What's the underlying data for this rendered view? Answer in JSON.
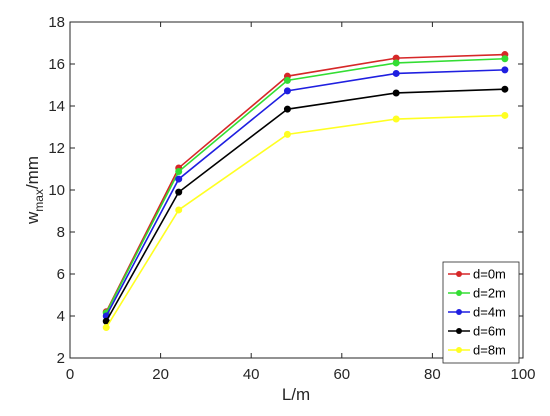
{
  "chart_data": {
    "type": "line",
    "xlabel": "L/m",
    "ylabel": {
      "base": "w",
      "subscript": "max",
      "suffix": "/mm"
    },
    "xlim": [
      0,
      100
    ],
    "ylim": [
      2,
      18
    ],
    "xticks": [
      "0",
      "20",
      "40",
      "60",
      "80",
      "100"
    ],
    "yticks": [
      "2",
      "4",
      "6",
      "8",
      "10",
      "12",
      "14",
      "16",
      "18"
    ],
    "grid": false,
    "legend_position": "bottom-right",
    "x": [
      8,
      24,
      48,
      72,
      96
    ],
    "series": [
      {
        "name": "d=0m",
        "color": "#d62728",
        "values": [
          4.2,
          11.05,
          15.42,
          16.28,
          16.45
        ]
      },
      {
        "name": "d=2m",
        "color": "#33dd33",
        "values": [
          4.15,
          10.88,
          15.22,
          16.05,
          16.25
        ]
      },
      {
        "name": "d=4m",
        "color": "#1f1fe0",
        "values": [
          4.0,
          10.52,
          14.72,
          15.55,
          15.72
        ]
      },
      {
        "name": "d=6m",
        "color": "#000000",
        "values": [
          3.75,
          9.9,
          13.85,
          14.62,
          14.8
        ]
      },
      {
        "name": "d=8m",
        "color": "#ffff22",
        "values": [
          3.45,
          9.05,
          12.65,
          13.38,
          13.55
        ]
      }
    ]
  }
}
